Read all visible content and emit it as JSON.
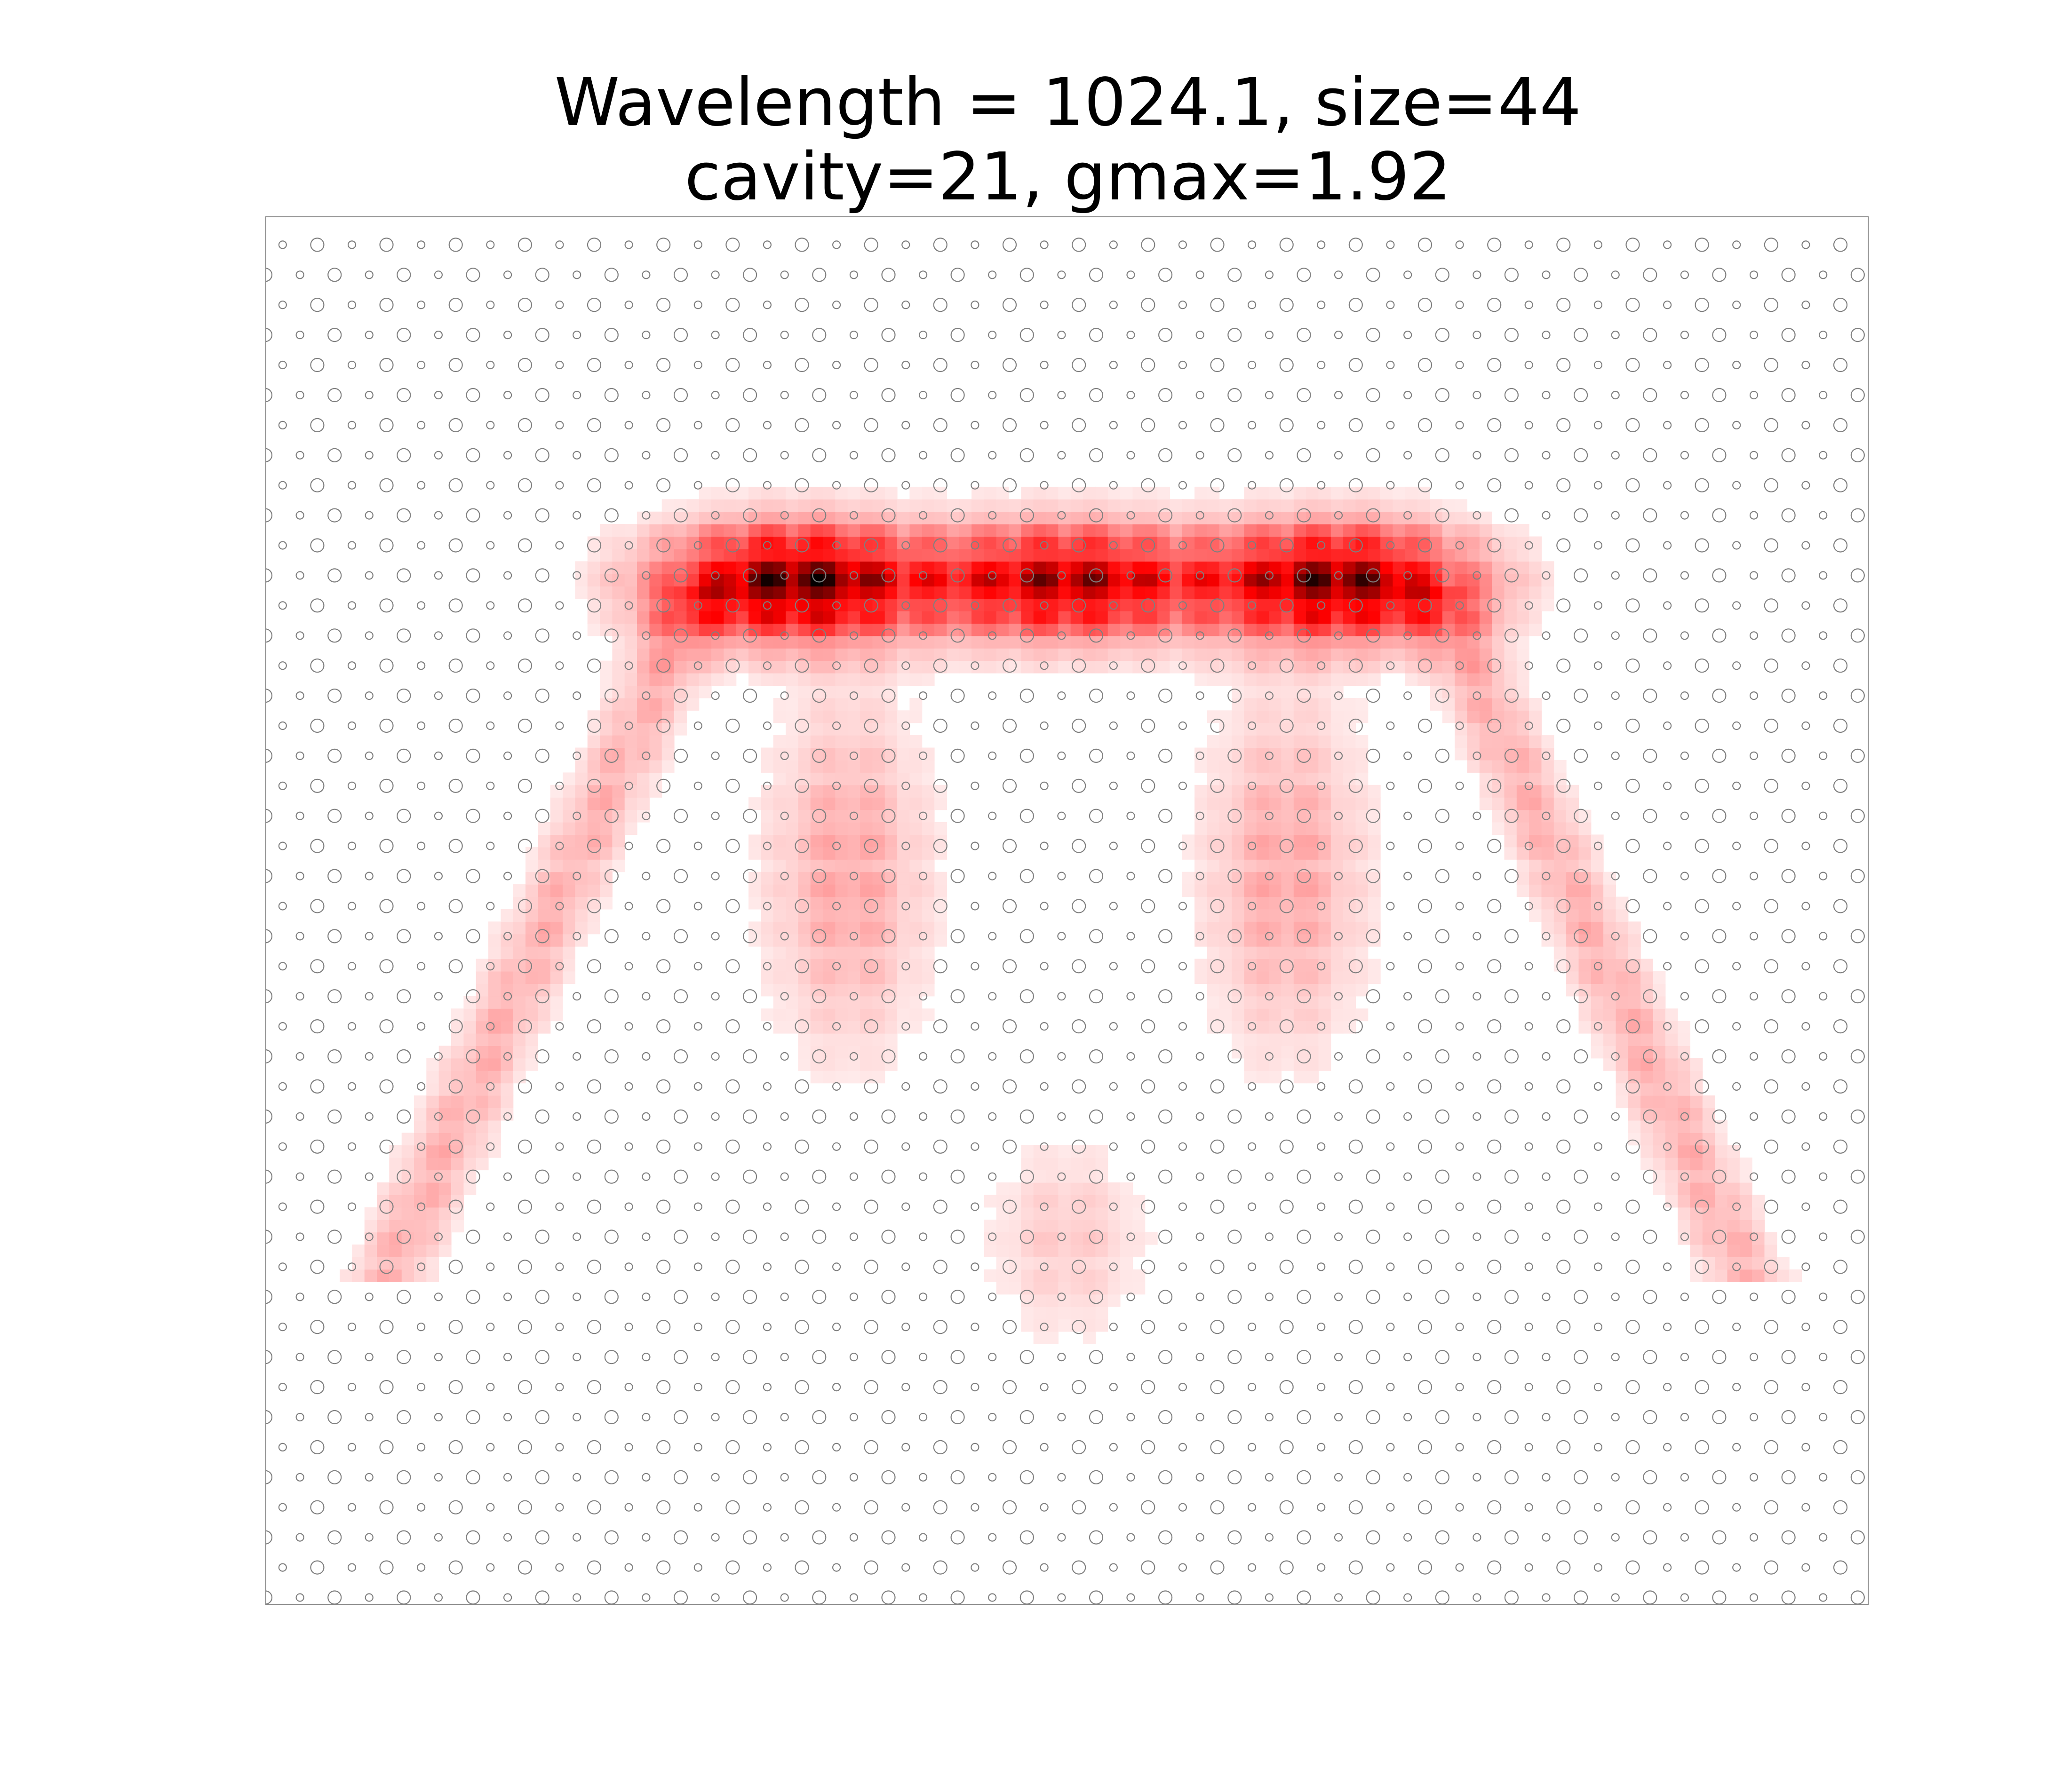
{
  "chart_data": {
    "type": "heatmap",
    "title_lines": [
      "Wavelength = 1024.1, size=44",
      "cavity=21, gmax=1.92"
    ],
    "colormap": [
      "#ffffff",
      "#ff0000",
      "#000000"
    ],
    "lattice_color": "#7f7f7f",
    "axes_visible": false,
    "grid": false,
    "field_hotspots": [
      {
        "region": "top-band-left",
        "x": -7.5,
        "y": 12.0,
        "intensity": 1.0
      },
      {
        "region": "top-band-center",
        "x": 0.0,
        "y": 12.0,
        "intensity": 0.85
      },
      {
        "region": "top-band-right",
        "x": 7.5,
        "y": 12.0,
        "intensity": 0.95
      },
      {
        "region": "left-arm",
        "x": -6.0,
        "y": 4.0,
        "intensity": 0.25
      },
      {
        "region": "right-arm",
        "x": 6.0,
        "y": 4.0,
        "intensity": 0.25
      },
      {
        "region": "bottom-tip",
        "x": 0.0,
        "y": -6.0,
        "intensity": 0.15
      }
    ]
  }
}
